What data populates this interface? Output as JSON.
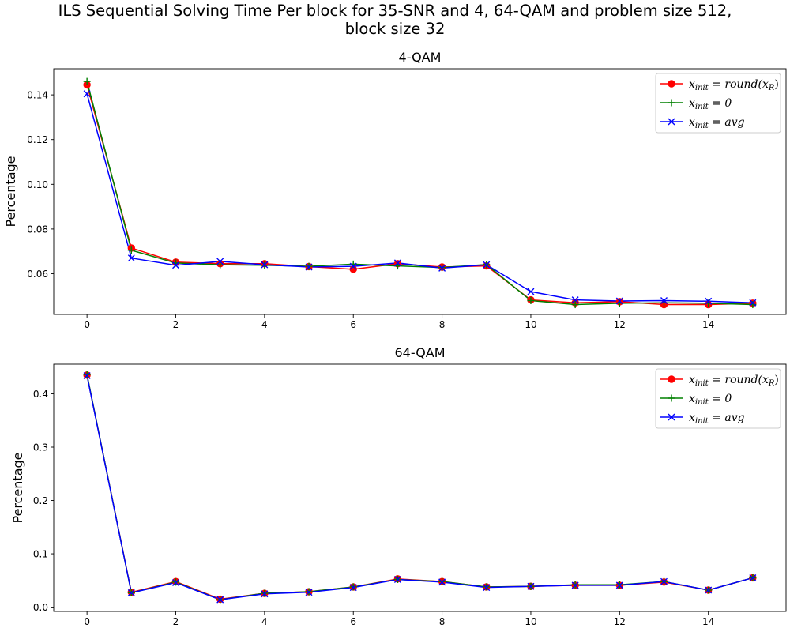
{
  "figure": {
    "title_line1": "ILS Sequential Solving Time Per block for 35-SNR and 4, 64-QAM and problem size 512,",
    "title_line2": "block size 32"
  },
  "colors": {
    "red": "#ff0000",
    "green": "#008000",
    "blue": "#0000ff"
  },
  "chart_data": [
    {
      "type": "line",
      "title": "4-QAM",
      "xlabel": "",
      "ylabel": "Percentage",
      "xlim": [
        -0.75,
        15.75
      ],
      "ylim": [
        0.0418,
        0.1517
      ],
      "xticks": [
        0,
        2,
        4,
        6,
        8,
        10,
        12,
        14
      ],
      "yticks": [
        0.06,
        0.08,
        0.1,
        0.12,
        0.14
      ],
      "ytick_labels": [
        "0.06",
        "0.08",
        "0.10",
        "0.12",
        "0.14"
      ],
      "legend_position": "top-right",
      "x": [
        0,
        1,
        2,
        3,
        4,
        5,
        6,
        7,
        8,
        9,
        10,
        11,
        12,
        13,
        14,
        15
      ],
      "series": [
        {
          "name_base": "x",
          "name_sub": "init",
          "name_rhs": " = round(x",
          "name_rhs_sub": "R",
          "name_end": ")",
          "color": "#ff0000",
          "marker": "circle",
          "values": [
            0.1445,
            0.0715,
            0.0652,
            0.0645,
            0.0645,
            0.0632,
            0.062,
            0.0645,
            0.063,
            0.0635,
            0.0483,
            0.047,
            0.0475,
            0.0462,
            0.0462,
            0.0468
          ]
        },
        {
          "name_base": "x",
          "name_sub": "init",
          "name_rhs": " = 0",
          "name_rhs_sub": "",
          "name_end": "",
          "color": "#008000",
          "marker": "plus",
          "values": [
            0.146,
            0.0705,
            0.0648,
            0.064,
            0.0638,
            0.0633,
            0.0643,
            0.0635,
            0.0628,
            0.0641,
            0.048,
            0.0462,
            0.0468,
            0.047,
            0.0468,
            0.0462
          ]
        },
        {
          "name_base": "x",
          "name_sub": "init",
          "name_rhs": " = avg",
          "name_rhs_sub": "",
          "name_end": "",
          "color": "#0000ff",
          "marker": "x",
          "values": [
            0.1405,
            0.067,
            0.0638,
            0.0655,
            0.064,
            0.063,
            0.0633,
            0.0648,
            0.0625,
            0.064,
            0.052,
            0.0483,
            0.0478,
            0.048,
            0.0477,
            0.047
          ]
        }
      ]
    },
    {
      "type": "line",
      "title": "64-QAM",
      "xlabel": "",
      "ylabel": "Percentage",
      "xlim": [
        -0.75,
        15.75
      ],
      "ylim": [
        -0.008,
        0.4555
      ],
      "xticks": [
        0,
        2,
        4,
        6,
        8,
        10,
        12,
        14
      ],
      "yticks": [
        0.0,
        0.1,
        0.2,
        0.3,
        0.4
      ],
      "ytick_labels": [
        "0.0",
        "0.1",
        "0.2",
        "0.3",
        "0.4"
      ],
      "legend_position": "top-right",
      "x": [
        0,
        1,
        2,
        3,
        4,
        5,
        6,
        7,
        8,
        9,
        10,
        11,
        12,
        13,
        14,
        15
      ],
      "series": [
        {
          "name_base": "x",
          "name_sub": "init",
          "name_rhs": " = round(x",
          "name_rhs_sub": "R",
          "name_end": ")",
          "color": "#ff0000",
          "marker": "circle",
          "values": [
            0.435,
            0.028,
            0.048,
            0.015,
            0.026,
            0.029,
            0.038,
            0.053,
            0.048,
            0.038,
            0.039,
            0.041,
            0.041,
            0.047,
            0.032,
            0.055
          ]
        },
        {
          "name_base": "x",
          "name_sub": "init",
          "name_rhs": " = 0",
          "name_rhs_sub": "",
          "name_end": "",
          "color": "#008000",
          "marker": "plus",
          "values": [
            0.436,
            0.027,
            0.047,
            0.014,
            0.026,
            0.029,
            0.038,
            0.052,
            0.048,
            0.038,
            0.039,
            0.042,
            0.042,
            0.048,
            0.032,
            0.055
          ]
        },
        {
          "name_base": "x",
          "name_sub": "init",
          "name_rhs": " = avg",
          "name_rhs_sub": "",
          "name_end": "",
          "color": "#0000ff",
          "marker": "x",
          "values": [
            0.434,
            0.027,
            0.046,
            0.014,
            0.025,
            0.028,
            0.037,
            0.052,
            0.047,
            0.037,
            0.039,
            0.041,
            0.041,
            0.048,
            0.032,
            0.055
          ]
        }
      ]
    }
  ]
}
